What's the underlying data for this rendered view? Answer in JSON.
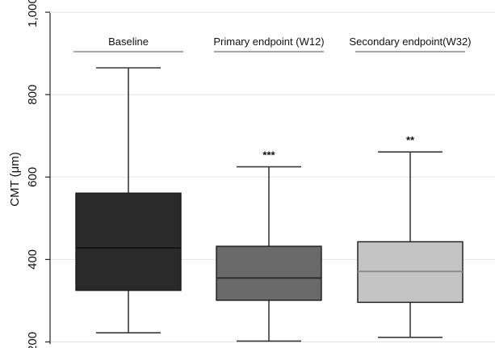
{
  "chart_data": {
    "type": "box",
    "title": "",
    "xlabel": "",
    "ylabel": "CMT (μm)",
    "ylim": [
      195,
      1010
    ],
    "yticks": [
      200,
      400,
      600,
      800,
      1000
    ],
    "ytick_labels": [
      "200",
      "400",
      "600",
      "800",
      "1,000"
    ],
    "grid": true,
    "series": [
      {
        "name": "Baseline",
        "whisker_low": 222,
        "q1": 325,
        "median": 428,
        "q3": 561,
        "whisker_high": 865,
        "significance": "",
        "fill": "#2a2a2a",
        "median_color": "#111111"
      },
      {
        "name": "Primary endpoint (W12)",
        "whisker_low": 202,
        "q1": 301,
        "median": 355,
        "q3": 432,
        "whisker_high": 625,
        "significance": "***",
        "fill": "#6a6a6a",
        "median_color": "#2a2a2a"
      },
      {
        "name": "Secondary endpoint(W32)",
        "whisker_low": 211,
        "q1": 296,
        "median": 371,
        "q3": 443,
        "whisker_high": 661,
        "significance": "**",
        "fill": "#c4c4c4",
        "median_color": "#8a8a8a"
      }
    ]
  },
  "colors": {
    "grid": "#e3e3e3",
    "axis": "#222222",
    "whisker": "#3a3a3a",
    "title_underline": "#8a8a8a"
  }
}
